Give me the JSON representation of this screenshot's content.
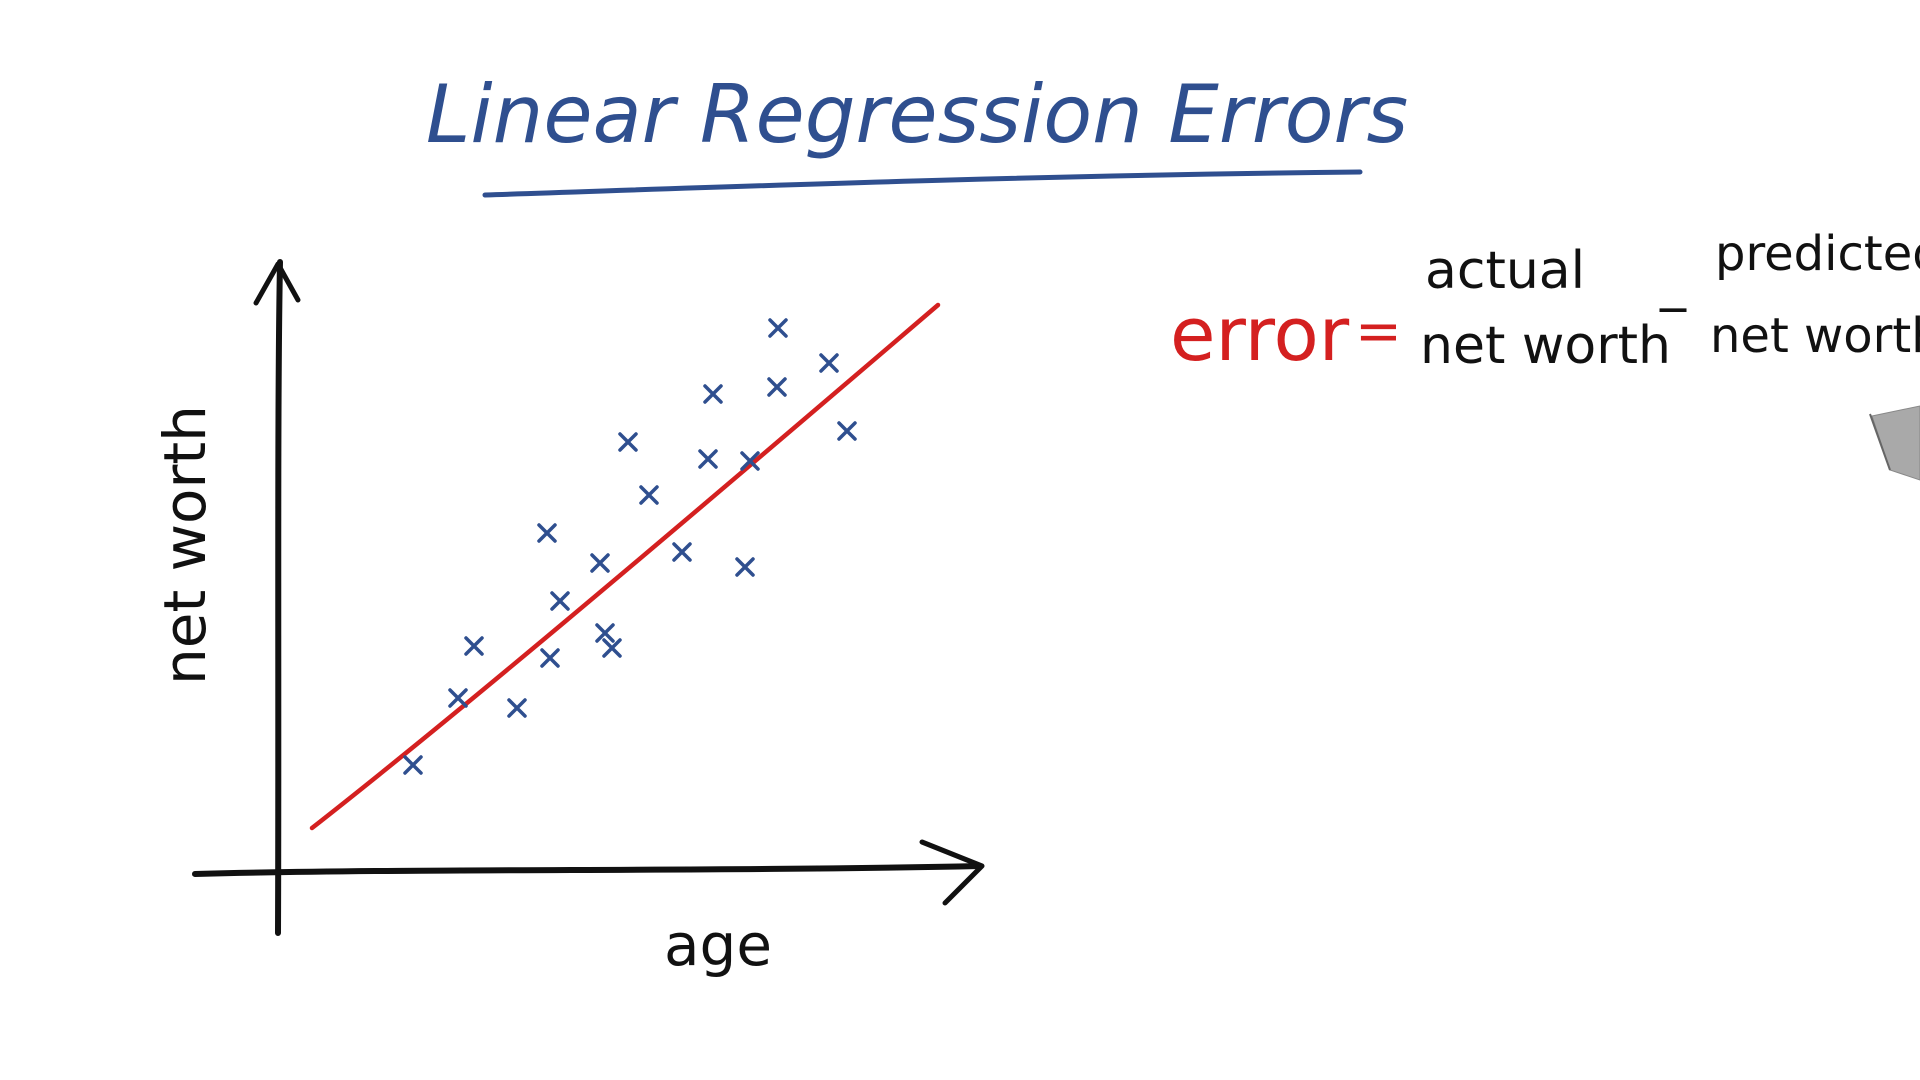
{
  "title": "Linear Regression Errors",
  "axes": {
    "x_label": "age",
    "y_label": "net worth"
  },
  "formula": {
    "lhs": "error",
    "equals": "=",
    "term1_top": "actual",
    "term1_bottom": "net worth",
    "minus": "_",
    "term2_top": "predicted",
    "term2_bottom": "net worth"
  },
  "colors": {
    "ink_blue": "#2f4f8f",
    "ink_black": "#111111",
    "ink_red": "#d42020",
    "background": "#ffffff"
  },
  "icons": {
    "pen": "marker-pen-icon"
  }
}
